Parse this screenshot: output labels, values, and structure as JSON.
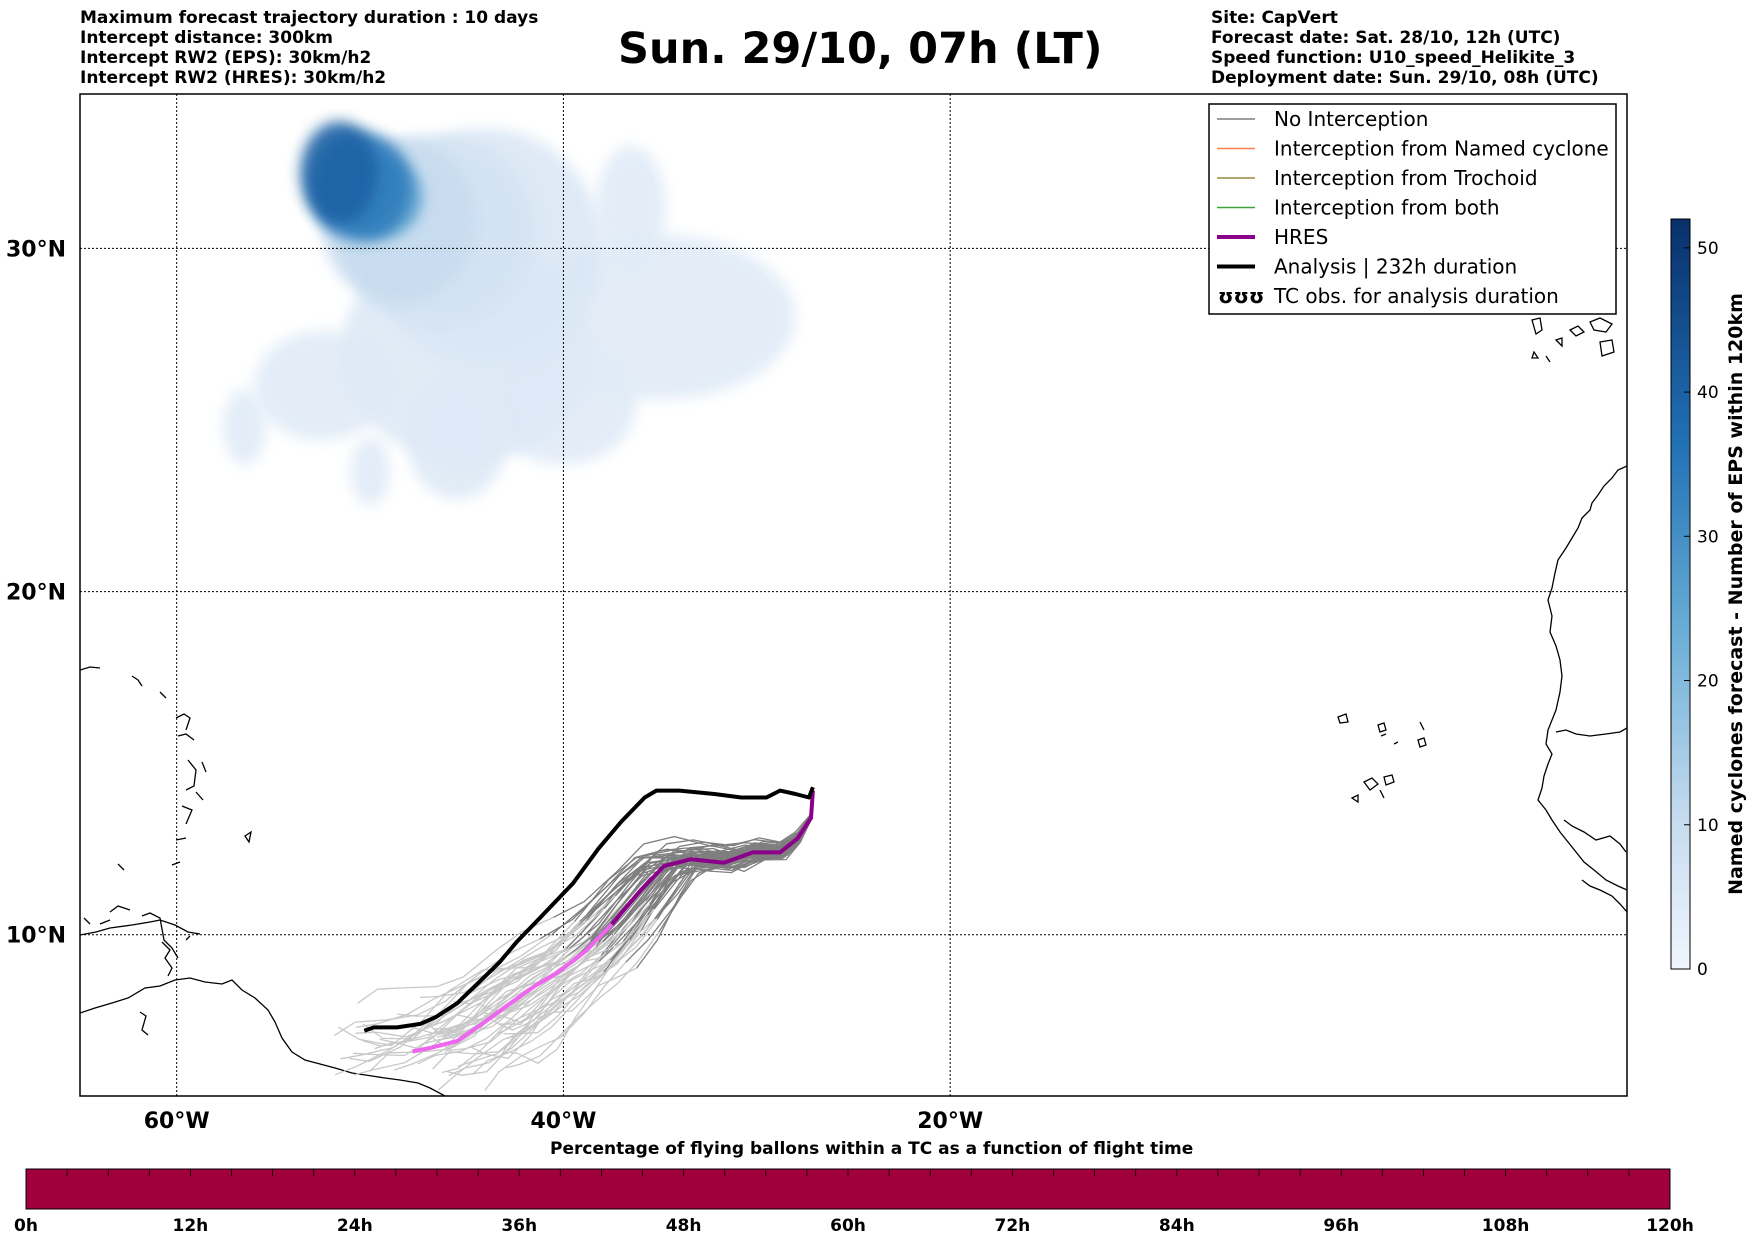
{
  "header": {
    "left": [
      "Maximum forecast trajectory duration : 10 days",
      "Intercept distance: 300km",
      "Intercept RW2 (EPS):  30km/h2",
      "Intercept RW2 (HRES): 30km/h2"
    ],
    "title": "Sun. 29/10, 07h (LT)",
    "right": [
      "Site: CapVert",
      "Forecast date: Sat. 28/10, 12h (UTC)",
      "Speed function: U10_speed_Helikite_3",
      "Deployment date: Sun. 29/10, 08h (UTC)"
    ]
  },
  "map": {
    "lon_range": [
      -65,
      15
    ],
    "lat_range": [
      5.3,
      34.5
    ],
    "lat_ticks": [
      {
        "value": 30,
        "label": "30°N"
      },
      {
        "value": 20,
        "label": "20°N"
      },
      {
        "value": 10,
        "label": "10°N"
      }
    ],
    "lon_ticks": [
      {
        "value": -60,
        "label": "60°W"
      },
      {
        "value": -40,
        "label": "40°W"
      },
      {
        "value": -20,
        "label": "20°W"
      }
    ],
    "colors": {
      "no_interception": "#7f7f7f",
      "named_cyclone": "#ff7f50",
      "trochoid": "#9a8c3a",
      "both": "#3aa33a",
      "hres": "#8b008b",
      "hres_late": "#ee66ee",
      "analysis": "#000000",
      "light_traj": "#c8c8c8"
    }
  },
  "legend": {
    "items": [
      {
        "label": "No Interception",
        "color": "#7f7f7f",
        "style": "thin"
      },
      {
        "label": "Interception from Named cyclone",
        "color": "#ff7f50",
        "style": "thin"
      },
      {
        "label": "Interception from Trochoid",
        "color": "#9a8c3a",
        "style": "thin"
      },
      {
        "label": "Interception from both",
        "color": "#3aa33a",
        "style": "thin"
      },
      {
        "label": "HRES",
        "color": "#8b008b",
        "style": "thick"
      },
      {
        "label": "Analysis | 232h duration",
        "color": "#000000",
        "style": "thick"
      },
      {
        "label": "TC obs. for analysis duration",
        "color": "#000000",
        "style": "glyph",
        "glyph": "ʊʊʊ"
      }
    ]
  },
  "colorbar": {
    "title": "Named cyclones forecast - Number of EPS within 120km",
    "min": 0,
    "max": 52,
    "ticks": [
      {
        "value": 0,
        "label": "0"
      },
      {
        "value": 10,
        "label": "10"
      },
      {
        "value": 20,
        "label": "20"
      },
      {
        "value": 30,
        "label": "30"
      },
      {
        "value": 40,
        "label": "40"
      },
      {
        "value": 50,
        "label": "50"
      }
    ],
    "color_low": "#e6eff9",
    "color_high": "#08306b"
  },
  "percentage_bar": {
    "title": "Percentage of flying ballons within a TC as a function of flight time",
    "color": "#a0003c",
    "ticks": [
      "0h",
      "12h",
      "24h",
      "36h",
      "48h",
      "60h",
      "72h",
      "84h",
      "96h",
      "108h",
      "120h"
    ]
  },
  "analysis_track": [
    [
      -27.1,
      14.3
    ],
    [
      -27.3,
      14.0
    ],
    [
      -28.0,
      14.1
    ],
    [
      -28.8,
      14.2
    ],
    [
      -29.5,
      14.0
    ],
    [
      -30.8,
      14.0
    ],
    [
      -32.2,
      14.1
    ],
    [
      -34.0,
      14.2
    ],
    [
      -35.2,
      14.2
    ],
    [
      -35.8,
      14.0
    ],
    [
      -37.0,
      13.3
    ],
    [
      -38.2,
      12.5
    ],
    [
      -39.5,
      11.5
    ],
    [
      -41.2,
      10.5
    ],
    [
      -42.4,
      9.8
    ],
    [
      -43.3,
      9.2
    ],
    [
      -44.4,
      8.6
    ],
    [
      -45.5,
      8.0
    ],
    [
      -46.6,
      7.6
    ],
    [
      -47.4,
      7.4
    ],
    [
      -48.6,
      7.3
    ],
    [
      -49.8,
      7.3
    ],
    [
      -50.3,
      7.2
    ]
  ],
  "hres_track": [
    [
      -27.1,
      14.2
    ],
    [
      -27.2,
      13.4
    ],
    [
      -27.9,
      12.8
    ],
    [
      -28.8,
      12.4
    ],
    [
      -30.2,
      12.4
    ],
    [
      -31.7,
      12.1
    ],
    [
      -33.4,
      12.2
    ],
    [
      -34.8,
      12.0
    ],
    [
      -36.0,
      11.3
    ],
    [
      -37.5,
      10.3
    ],
    [
      -38.9,
      9.5
    ],
    [
      -40.3,
      8.9
    ],
    [
      -41.5,
      8.5
    ],
    [
      -43.0,
      7.9
    ],
    [
      -44.2,
      7.4
    ],
    [
      -45.5,
      6.9
    ],
    [
      -46.9,
      6.7
    ],
    [
      -47.8,
      6.6
    ]
  ],
  "density_blobs": [
    {
      "lon": -51.6,
      "lat": 32.2,
      "rx": 2.0,
      "ry": 1.5,
      "count": 40
    },
    {
      "lon": -50.5,
      "lat": 31.8,
      "rx": 2.6,
      "ry": 1.6,
      "count": 34
    },
    {
      "lon": -49.5,
      "lat": 31.5,
      "rx": 2.2,
      "ry": 1.2,
      "count": 26
    },
    {
      "lon": -48.5,
      "lat": 30.8,
      "rx": 4.0,
      "ry": 2.4,
      "count": 10
    },
    {
      "lon": -46.5,
      "lat": 30.5,
      "rx": 5.0,
      "ry": 2.8,
      "count": 6
    },
    {
      "lon": -44.0,
      "lat": 30.0,
      "rx": 6.0,
      "ry": 3.5,
      "count": 4
    },
    {
      "lon": -36.5,
      "lat": 31.2,
      "rx": 1.8,
      "ry": 1.8,
      "count": 2
    },
    {
      "lon": -45.0,
      "lat": 27.0,
      "rx": 6.5,
      "ry": 3.2,
      "count": 3
    },
    {
      "lon": -35.0,
      "lat": 28.0,
      "rx": 7.0,
      "ry": 2.4,
      "count": 2
    },
    {
      "lon": -56.5,
      "lat": 24.8,
      "rx": 1.1,
      "ry": 1.1,
      "count": 2
    },
    {
      "lon": -50.0,
      "lat": 23.5,
      "rx": 1.0,
      "ry": 1.0,
      "count": 2
    },
    {
      "lon": -45.5,
      "lat": 24.5,
      "rx": 2.6,
      "ry": 1.8,
      "count": 3
    },
    {
      "lon": -40.0,
      "lat": 25.5,
      "rx": 3.8,
      "ry": 1.8,
      "count": 2
    },
    {
      "lon": -52.5,
      "lat": 26.0,
      "rx": 3.5,
      "ry": 1.6,
      "count": 2
    }
  ]
}
